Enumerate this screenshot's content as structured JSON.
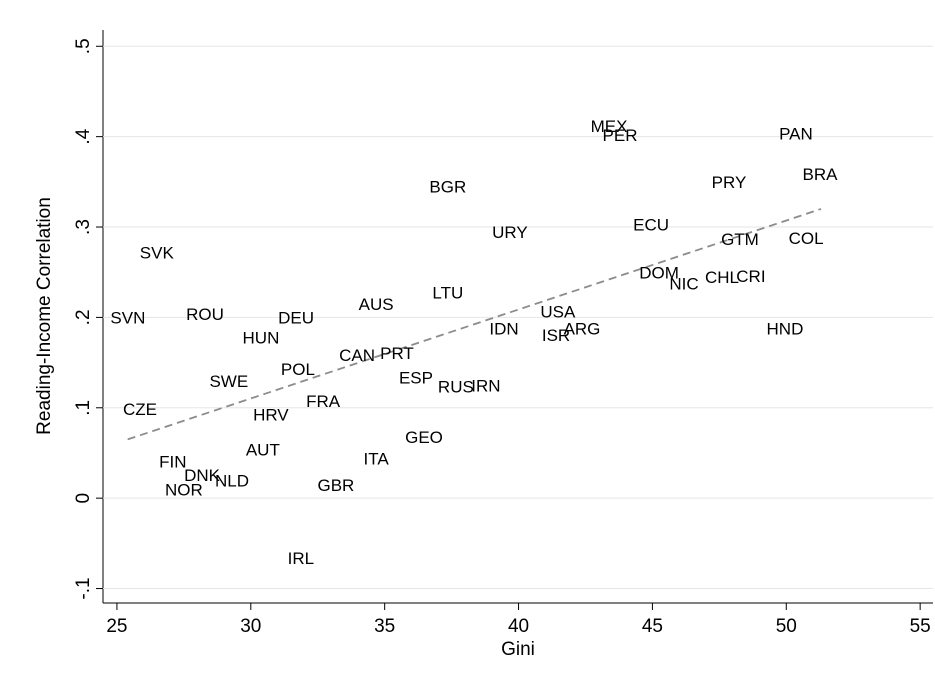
{
  "chart_data": {
    "type": "scatter",
    "xlabel": "Gini",
    "ylabel": "Reading-Income Correlation",
    "labels": [
      "SVK",
      "SVN",
      "ROU",
      "DEU",
      "HUN",
      "AUS",
      "LTU",
      "BGR",
      "URY",
      "MEX",
      "PER",
      "PAN",
      "BRA",
      "PRY",
      "ECU",
      "GTM",
      "COL",
      "DOM",
      "NIC",
      "CHL",
      "CRI",
      "HND",
      "USA",
      "IDN",
      "ISR",
      "ARG",
      "CAN",
      "PRT",
      "POL",
      "SWE",
      "ESP",
      "RUS",
      "IRN",
      "FRA",
      "CZE",
      "HRV",
      "GEO",
      "AUT",
      "ITA",
      "FIN",
      "DNK",
      "NLD",
      "NOR",
      "GBR",
      "IRL"
    ],
    "x": [
      26.49,
      25.41,
      28.29,
      31.69,
      30.38,
      34.68,
      37.36,
      37.36,
      39.68,
      43.38,
      43.79,
      50.36,
      51.26,
      47.86,
      44.95,
      48.27,
      50.74,
      45.25,
      46.18,
      47.6,
      48.68,
      49.95,
      41.47,
      39.46,
      41.4,
      42.37,
      33.97,
      35.46,
      31.76,
      29.18,
      36.17,
      37.66,
      38.78,
      32.7,
      25.86,
      30.75,
      36.47,
      30.45,
      34.68,
      27.09,
      28.18,
      29.3,
      27.5,
      33.18,
      31.87
    ],
    "y": [
      0.27,
      0.198,
      0.202,
      0.198,
      0.176,
      0.213,
      0.226,
      0.343,
      0.293,
      0.41,
      0.4,
      0.402,
      0.357,
      0.348,
      0.301,
      0.285,
      0.286,
      0.248,
      0.236,
      0.243,
      0.244,
      0.186,
      0.205,
      0.186,
      0.179,
      0.186,
      0.157,
      0.159,
      0.141,
      0.128,
      0.132,
      0.122,
      0.123,
      0.106,
      0.097,
      0.091,
      0.066,
      0.052,
      0.042,
      0.039,
      0.024,
      0.018,
      0.008,
      0.013,
      -0.068
    ],
    "fit_line": {
      "color": "#8c8c8c",
      "x": [
        25.4,
        51.3
      ],
      "y": [
        0.065,
        0.32
      ]
    },
    "xlim": [
      24.48,
      55.48
    ],
    "ylim": [
      -0.116,
      0.518
    ],
    "xticks": [
      25,
      30,
      35,
      40,
      45,
      50,
      55
    ],
    "yticks": [
      {
        "value": -0.1,
        "label": "-.1"
      },
      0,
      {
        "value": 0.1,
        "label": ".1"
      },
      {
        "value": 0.2,
        "label": ".2"
      },
      {
        "value": 0.3,
        "label": ".3"
      },
      {
        "value": 0.4,
        "label": ".4"
      },
      {
        "value": 0.5,
        "label": ".5"
      }
    ],
    "grid": true
  }
}
